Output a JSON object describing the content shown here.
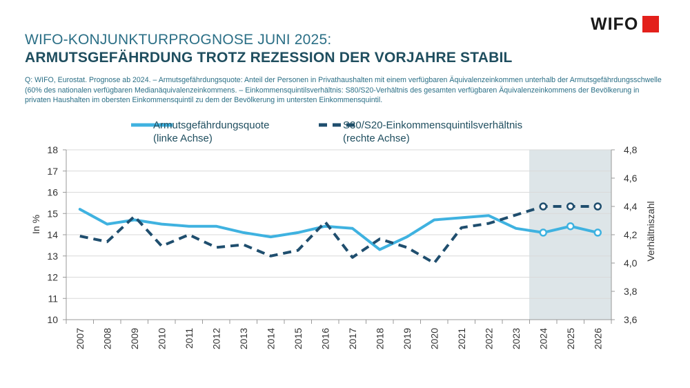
{
  "header": {
    "title_line1": "WIFO-KONJUNKTURPROGNOSE JUNI 2025:",
    "title_line2": "ARMUTSGEFÄHRDUNG TROTZ REZESSION DER VORJAHRE STABIL",
    "note": "Q: WIFO, Eurostat. Prognose ab 2024. – Armutsgefährdungsquote: Anteil der Personen in Privathaushalten mit einem verfügbaren Äquivalenzeinkommen unterhalb der Armutsgefährdungsschwelle (60% des nationalen verfügbaren Medianäquivalenzeinkommens. – Einkommensquintilsverhältnis: S80/S20-Verhältnis des gesamten verfügbaren Äquivalenzeinkommens der Bevölkerung in privaten Haushalten im obersten Einkommensquintil zu dem der Bevölkerung im untersten Einkommensquintil."
  },
  "logo": {
    "text": "WIFO",
    "accent_color": "#e3201b"
  },
  "chart_data": {
    "type": "line",
    "categories": [
      "2007",
      "2008",
      "2009",
      "2010",
      "2011",
      "2012",
      "2013",
      "2014",
      "2015",
      "2016",
      "2017",
      "2018",
      "2019",
      "2020",
      "2021",
      "2022",
      "2023",
      "2024",
      "2025",
      "2026"
    ],
    "forecast_from": "2024",
    "series": [
      {
        "name": "Armutsgefährdungsquote",
        "name_line2": "(linke Achse)",
        "axis": "left",
        "style": "solid",
        "color": "#3fb2e0",
        "values": [
          15.2,
          14.5,
          14.7,
          14.5,
          14.4,
          14.4,
          14.1,
          13.9,
          14.1,
          14.4,
          14.3,
          13.3,
          13.9,
          14.7,
          14.8,
          14.9,
          14.3,
          14.1,
          14.4,
          14.1
        ]
      },
      {
        "name": "S80/S20-Einkommensquintilsverhältnis",
        "name_line2": "(rechte Achse)",
        "axis": "right",
        "style": "dashed",
        "color": "#1f4e6e",
        "values": [
          4.19,
          4.15,
          4.33,
          4.12,
          4.2,
          4.11,
          4.13,
          4.05,
          4.09,
          4.29,
          4.04,
          4.17,
          4.11,
          4.0,
          4.25,
          4.28,
          4.34,
          4.4,
          4.4,
          4.4
        ]
      }
    ],
    "y_left": {
      "label": "In %",
      "min": 10,
      "max": 18,
      "ticks": [
        "10",
        "11",
        "12",
        "13",
        "14",
        "15",
        "16",
        "17",
        "18"
      ]
    },
    "y_right": {
      "label": "Verhältniszahl",
      "min": 3.6,
      "max": 4.8,
      "ticks": [
        "3,6",
        "3,8",
        "4,0",
        "4,2",
        "4,4",
        "4,6",
        "4,8"
      ]
    },
    "grid": true,
    "legend_position": "top",
    "forecast_shade_color": "#dde5e8"
  }
}
